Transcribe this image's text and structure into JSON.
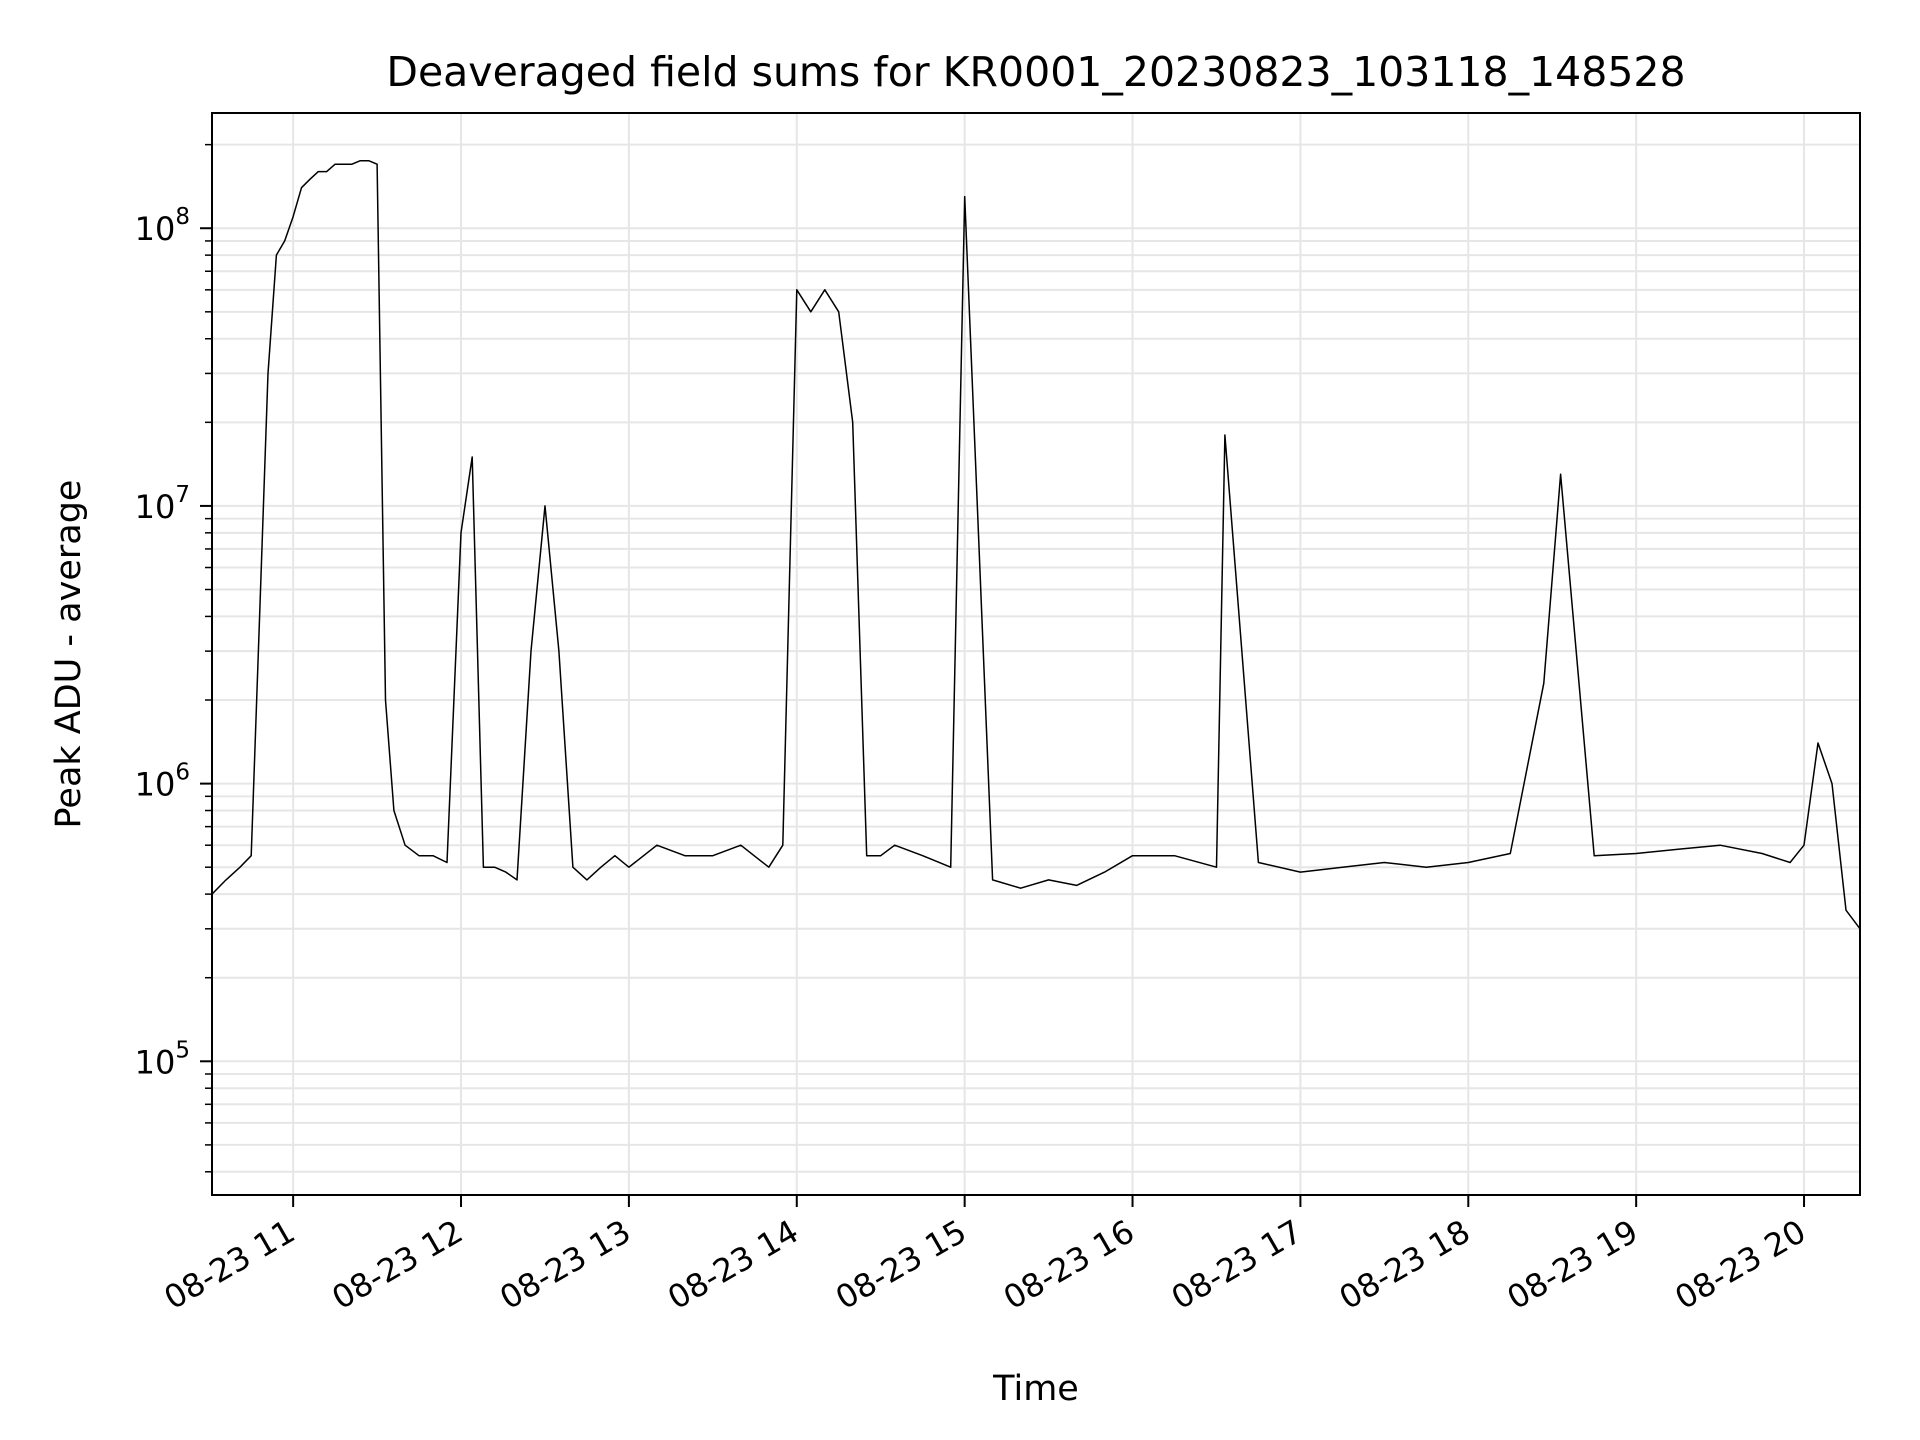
{
  "chart_data": {
    "type": "line",
    "title": "Deaveraged field sums for KR0001_20230823_103118_148528",
    "xlabel": "Time",
    "ylabel": "Peak ADU - average",
    "xscale": "time",
    "yscale": "log",
    "grid": true,
    "xlim": [
      "2023-08-23 10:31",
      "2023-08-23 20:20"
    ],
    "ylim": [
      33000,
      260000000
    ],
    "x_ticks": [
      {
        "t": "2023-08-23 11:00",
        "label": "08-23 11"
      },
      {
        "t": "2023-08-23 12:00",
        "label": "08-23 12"
      },
      {
        "t": "2023-08-23 13:00",
        "label": "08-23 13"
      },
      {
        "t": "2023-08-23 14:00",
        "label": "08-23 14"
      },
      {
        "t": "2023-08-23 15:00",
        "label": "08-23 15"
      },
      {
        "t": "2023-08-23 16:00",
        "label": "08-23 16"
      },
      {
        "t": "2023-08-23 17:00",
        "label": "08-23 17"
      },
      {
        "t": "2023-08-23 18:00",
        "label": "08-23 18"
      },
      {
        "t": "2023-08-23 19:00",
        "label": "08-23 19"
      },
      {
        "t": "2023-08-23 20:00",
        "label": "08-23 20"
      }
    ],
    "y_ticks": [
      {
        "value": 100000,
        "base": "10",
        "exp": "5"
      },
      {
        "value": 1000000,
        "base": "10",
        "exp": "6"
      },
      {
        "value": 10000000,
        "base": "10",
        "exp": "7"
      },
      {
        "value": 100000000,
        "base": "10",
        "exp": "8"
      }
    ],
    "series": [
      {
        "color": "#000000",
        "x": [
          "2023-08-23 10:31",
          "2023-08-23 10:36",
          "2023-08-23 10:41",
          "2023-08-23 10:45",
          "2023-08-23 10:48",
          "2023-08-23 10:51",
          "2023-08-23 10:54",
          "2023-08-23 10:57",
          "2023-08-23 11:00",
          "2023-08-23 11:03",
          "2023-08-23 11:06",
          "2023-08-23 11:09",
          "2023-08-23 11:12",
          "2023-08-23 11:15",
          "2023-08-23 11:18",
          "2023-08-23 11:21",
          "2023-08-23 11:24",
          "2023-08-23 11:27",
          "2023-08-23 11:30",
          "2023-08-23 11:33",
          "2023-08-23 11:36",
          "2023-08-23 11:40",
          "2023-08-23 11:45",
          "2023-08-23 11:50",
          "2023-08-23 11:55",
          "2023-08-23 12:00",
          "2023-08-23 12:04",
          "2023-08-23 12:08",
          "2023-08-23 12:12",
          "2023-08-23 12:16",
          "2023-08-23 12:20",
          "2023-08-23 12:25",
          "2023-08-23 12:30",
          "2023-08-23 12:35",
          "2023-08-23 12:40",
          "2023-08-23 12:45",
          "2023-08-23 12:50",
          "2023-08-23 12:55",
          "2023-08-23 13:00",
          "2023-08-23 13:10",
          "2023-08-23 13:20",
          "2023-08-23 13:30",
          "2023-08-23 13:40",
          "2023-08-23 13:50",
          "2023-08-23 13:55",
          "2023-08-23 14:00",
          "2023-08-23 14:05",
          "2023-08-23 14:10",
          "2023-08-23 14:15",
          "2023-08-23 14:20",
          "2023-08-23 14:25",
          "2023-08-23 14:30",
          "2023-08-23 14:35",
          "2023-08-23 14:45",
          "2023-08-23 14:55",
          "2023-08-23 15:00",
          "2023-08-23 15:10",
          "2023-08-23 15:20",
          "2023-08-23 15:30",
          "2023-08-23 15:40",
          "2023-08-23 15:50",
          "2023-08-23 16:00",
          "2023-08-23 16:15",
          "2023-08-23 16:30",
          "2023-08-23 16:33",
          "2023-08-23 16:45",
          "2023-08-23 17:00",
          "2023-08-23 17:15",
          "2023-08-23 17:30",
          "2023-08-23 17:45",
          "2023-08-23 18:00",
          "2023-08-23 18:15",
          "2023-08-23 18:27",
          "2023-08-23 18:33",
          "2023-08-23 18:45",
          "2023-08-23 19:00",
          "2023-08-23 19:15",
          "2023-08-23 19:30",
          "2023-08-23 19:45",
          "2023-08-23 19:55",
          "2023-08-23 20:00",
          "2023-08-23 20:05",
          "2023-08-23 20:10",
          "2023-08-23 20:15",
          "2023-08-23 20:20"
        ],
        "y": [
          400000,
          450000,
          500000,
          550000,
          4000000,
          30000000,
          80000000,
          90000000,
          110000000,
          140000000,
          150000000,
          160000000,
          160000000,
          170000000,
          170000000,
          170000000,
          175000000,
          175000000,
          170000000,
          2000000,
          800000,
          600000,
          550000,
          550000,
          520000,
          8000000,
          15000000,
          500000,
          500000,
          480000,
          450000,
          3000000,
          10000000,
          3000000,
          500000,
          450000,
          500000,
          550000,
          500000,
          600000,
          550000,
          550000,
          600000,
          500000,
          600000,
          60000000,
          50000000,
          60000000,
          50000000,
          20000000,
          550000,
          550000,
          600000,
          550000,
          500000,
          130000000,
          450000,
          420000,
          450000,
          430000,
          480000,
          550000,
          550000,
          500000,
          18000000,
          520000,
          480000,
          500000,
          520000,
          500000,
          520000,
          560000,
          2300000,
          13000000,
          550000,
          560000,
          580000,
          600000,
          560000,
          520000,
          600000,
          1400000,
          1000000,
          350000,
          300000
        ]
      }
    ]
  }
}
